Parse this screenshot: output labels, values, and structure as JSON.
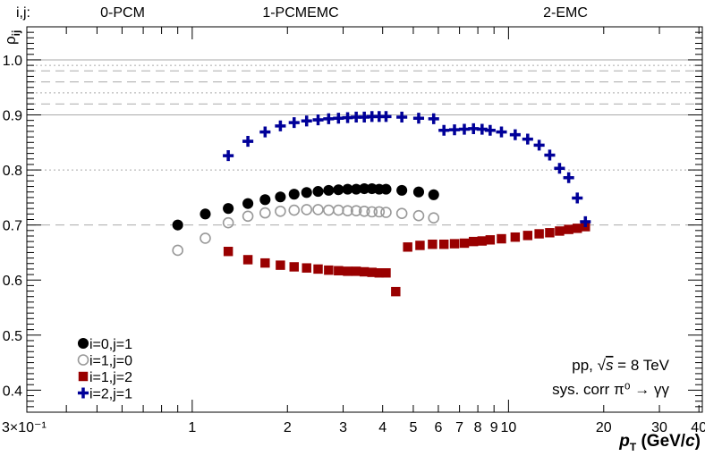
{
  "header": {
    "indices_label": "i,j:",
    "categories": [
      "0-PCM",
      "1-PCMEMC",
      "2-EMC"
    ]
  },
  "annotation": {
    "system_prefix": "pp, ",
    "sqrt_symbol": "√",
    "sqrt_arg": "s",
    "energy": " = 8 TeV",
    "line2": "sys. corr π⁰ → γγ"
  },
  "chart_data": {
    "type": "scatter",
    "title": "",
    "xlabel": "p_T (GeV/c)",
    "xlabel_parts": {
      "p": "p",
      "sub": "T",
      "units_pre": " (GeV/",
      "c": "c",
      "units_post": ")"
    },
    "ylabel": "ρ_ij",
    "ylabel_parts": {
      "rho": "ρ",
      "sub": "ij"
    },
    "x_scale": "log",
    "xlim": [
      0.3,
      41
    ],
    "ylim": [
      0.36,
      1.06
    ],
    "y_ticks": [
      0.4,
      0.5,
      0.6,
      0.7,
      0.8,
      0.9,
      1.0
    ],
    "y_tick_labels": [
      "0.4",
      "0.5",
      "0.6",
      "0.7",
      "0.8",
      "0.9",
      "1.0"
    ],
    "x_tick_labels": [
      {
        "x": 0.3,
        "label": "3×10⁻¹"
      },
      {
        "x": 1,
        "label": "1"
      },
      {
        "x": 2,
        "label": "2"
      },
      {
        "x": 3,
        "label": "3"
      },
      {
        "x": 4,
        "label": "4"
      },
      {
        "x": 5,
        "label": "5"
      },
      {
        "x": 6,
        "label": "6"
      },
      {
        "x": 7,
        "label": "7"
      },
      {
        "x": 8,
        "label": "8"
      },
      {
        "x": 9,
        "label": "9"
      },
      {
        "x": 10,
        "label": "10"
      },
      {
        "x": 20,
        "label": "20"
      },
      {
        "x": 30,
        "label": "30"
      },
      {
        "x": 40,
        "label": "40"
      }
    ],
    "reference_lines": [
      {
        "y": 1.0,
        "style": "solid"
      },
      {
        "y": 0.99,
        "style": "dotted"
      },
      {
        "y": 0.98,
        "style": "dashed"
      },
      {
        "y": 0.96,
        "style": "dashed"
      },
      {
        "y": 0.94,
        "style": "dotted"
      },
      {
        "y": 0.92,
        "style": "dashed"
      },
      {
        "y": 0.9,
        "style": "solid"
      },
      {
        "y": 0.8,
        "style": "dotted"
      },
      {
        "y": 0.7,
        "style": "dashed"
      }
    ],
    "legend_position": "bottom-left",
    "series": [
      {
        "name": "i=0,j=1",
        "marker": "filled-circle",
        "color": "#000000",
        "points": [
          [
            0.9,
            0.7
          ],
          [
            1.1,
            0.72
          ],
          [
            1.3,
            0.73
          ],
          [
            1.5,
            0.739
          ],
          [
            1.7,
            0.746
          ],
          [
            1.9,
            0.751
          ],
          [
            2.1,
            0.756
          ],
          [
            2.3,
            0.759
          ],
          [
            2.5,
            0.761
          ],
          [
            2.7,
            0.763
          ],
          [
            2.9,
            0.764
          ],
          [
            3.1,
            0.765
          ],
          [
            3.3,
            0.765
          ],
          [
            3.5,
            0.766
          ],
          [
            3.7,
            0.766
          ],
          [
            3.9,
            0.765
          ],
          [
            4.1,
            0.765
          ],
          [
            4.6,
            0.763
          ],
          [
            5.2,
            0.76
          ],
          [
            5.8,
            0.755
          ]
        ]
      },
      {
        "name": "i=1,j=0",
        "marker": "open-circle",
        "color": "#999999",
        "points": [
          [
            0.9,
            0.654
          ],
          [
            1.1,
            0.676
          ],
          [
            1.3,
            0.704
          ],
          [
            1.5,
            0.716
          ],
          [
            1.7,
            0.722
          ],
          [
            1.9,
            0.725
          ],
          [
            2.1,
            0.727
          ],
          [
            2.3,
            0.728
          ],
          [
            2.5,
            0.728
          ],
          [
            2.7,
            0.727
          ],
          [
            2.9,
            0.727
          ],
          [
            3.1,
            0.726
          ],
          [
            3.3,
            0.726
          ],
          [
            3.5,
            0.725
          ],
          [
            3.7,
            0.724
          ],
          [
            3.9,
            0.724
          ],
          [
            4.1,
            0.723
          ],
          [
            4.6,
            0.721
          ],
          [
            5.2,
            0.717
          ],
          [
            5.8,
            0.713
          ]
        ]
      },
      {
        "name": "i=1,j=2",
        "marker": "filled-square",
        "color": "#990000",
        "points": [
          [
            1.3,
            0.652
          ],
          [
            1.5,
            0.637
          ],
          [
            1.7,
            0.631
          ],
          [
            1.9,
            0.627
          ],
          [
            2.1,
            0.624
          ],
          [
            2.3,
            0.622
          ],
          [
            2.5,
            0.62
          ],
          [
            2.7,
            0.618
          ],
          [
            2.9,
            0.617
          ],
          [
            3.1,
            0.616
          ],
          [
            3.3,
            0.616
          ],
          [
            3.5,
            0.615
          ],
          [
            3.7,
            0.614
          ],
          [
            3.9,
            0.613
          ],
          [
            4.1,
            0.613
          ],
          [
            4.4,
            0.579
          ],
          [
            4.8,
            0.66
          ],
          [
            5.25,
            0.663
          ],
          [
            5.75,
            0.665
          ],
          [
            6.25,
            0.665
          ],
          [
            6.75,
            0.666
          ],
          [
            7.25,
            0.667
          ],
          [
            7.75,
            0.67
          ],
          [
            8.25,
            0.671
          ],
          [
            8.75,
            0.673
          ],
          [
            9.5,
            0.675
          ],
          [
            10.5,
            0.678
          ],
          [
            11.5,
            0.681
          ],
          [
            12.5,
            0.684
          ],
          [
            13.5,
            0.686
          ],
          [
            14.5,
            0.689
          ],
          [
            15.5,
            0.692
          ],
          [
            16.5,
            0.694
          ],
          [
            17.5,
            0.697
          ]
        ]
      },
      {
        "name": "i=2,j=1",
        "marker": "cross",
        "color": "#000099",
        "points": [
          [
            1.3,
            0.826
          ],
          [
            1.5,
            0.852
          ],
          [
            1.7,
            0.869
          ],
          [
            1.9,
            0.88
          ],
          [
            2.1,
            0.886
          ],
          [
            2.3,
            0.889
          ],
          [
            2.5,
            0.891
          ],
          [
            2.7,
            0.893
          ],
          [
            2.9,
            0.894
          ],
          [
            3.1,
            0.895
          ],
          [
            3.3,
            0.896
          ],
          [
            3.5,
            0.896
          ],
          [
            3.7,
            0.897
          ],
          [
            3.9,
            0.897
          ],
          [
            4.1,
            0.897
          ],
          [
            4.6,
            0.896
          ],
          [
            5.2,
            0.894
          ],
          [
            5.8,
            0.893
          ],
          [
            6.25,
            0.872
          ],
          [
            6.75,
            0.873
          ],
          [
            7.25,
            0.874
          ],
          [
            7.75,
            0.875
          ],
          [
            8.25,
            0.874
          ],
          [
            8.75,
            0.872
          ],
          [
            9.5,
            0.869
          ],
          [
            10.5,
            0.864
          ],
          [
            11.5,
            0.856
          ],
          [
            12.5,
            0.845
          ],
          [
            13.5,
            0.827
          ],
          [
            14.5,
            0.803
          ],
          [
            15.5,
            0.786
          ],
          [
            16.5,
            0.749
          ],
          [
            17.5,
            0.706
          ]
        ]
      }
    ]
  }
}
